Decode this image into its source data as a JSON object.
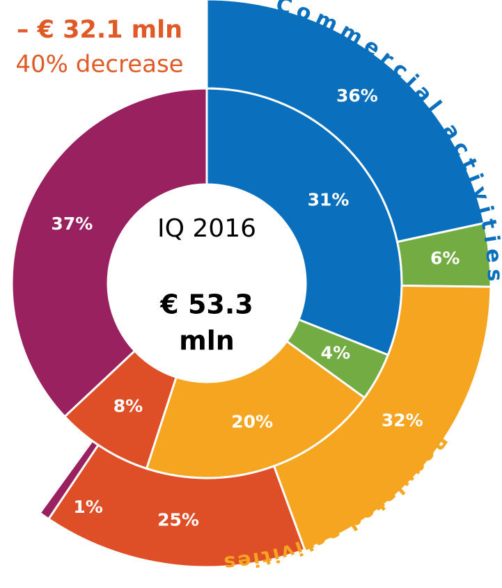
{
  "chart_data": {
    "type": "nested-donut",
    "annotations": [
      "– € 32.1 mln",
      "40% decrease"
    ],
    "center_label": "IQ 2016",
    "center_value": [
      "€ 53.3",
      "mln"
    ],
    "groups": [
      "Commercial activities",
      "Regulated activities"
    ],
    "group_colors": [
      "#0a6fbd",
      "#f5a51f"
    ],
    "rings": [
      {
        "values": [
          31,
          4,
          20,
          8,
          37
        ],
        "value_labels": [
          "31%",
          "4%",
          "20%",
          "8%",
          "37%"
        ],
        "colors": [
          "#0a6fbd",
          "#72ac42",
          "#f5a51f",
          "#de4f27",
          "#9a215f"
        ]
      },
      {
        "values": [
          36,
          6,
          32,
          25,
          1
        ],
        "value_labels": [
          "36%",
          "6%",
          "32%",
          "25%",
          "1%"
        ],
        "colors": [
          "#0a6fbd",
          "#72ac42",
          "#f5a51f",
          "#de4f27",
          "#9a215f"
        ]
      }
    ]
  }
}
